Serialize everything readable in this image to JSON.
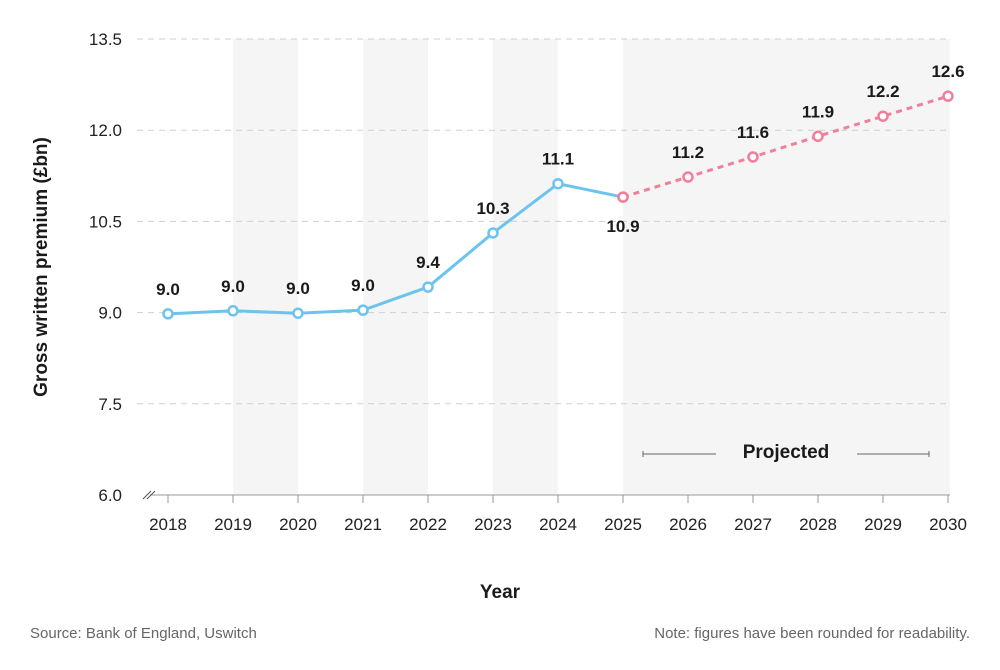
{
  "chart_data": {
    "type": "line",
    "xlabel": "Year",
    "ylabel": "Gross written premium (£bn)",
    "ylim": [
      6.0,
      13.5
    ],
    "yticks": [
      "6.0",
      "7.5",
      "9.0",
      "10.5",
      "12.0",
      "13.5"
    ],
    "grid": "horizontal dashed",
    "categories": [
      "2018",
      "2019",
      "2020",
      "2021",
      "2022",
      "2023",
      "2024",
      "2025",
      "2026",
      "2027",
      "2028",
      "2029",
      "2030"
    ],
    "series": [
      {
        "type": "actual",
        "color": "#6cc4ee",
        "style": "solid",
        "x": [
          "2018",
          "2019",
          "2020",
          "2021",
          "2022",
          "2023",
          "2024",
          "2025"
        ],
        "values": [
          8.98,
          9.03,
          8.99,
          9.04,
          9.42,
          10.31,
          11.12,
          10.9
        ],
        "labels": [
          "9.0",
          "9.0",
          "9.0",
          "9.0",
          "9.4",
          "10.3",
          "11.1",
          "10.9"
        ]
      },
      {
        "type": "projected",
        "color": "#f07f9c",
        "style": "dotted",
        "x": [
          "2025",
          "2026",
          "2027",
          "2028",
          "2029",
          "2030"
        ],
        "values": [
          10.9,
          11.23,
          11.56,
          11.9,
          12.23,
          12.56
        ],
        "labels": [
          "",
          "11.2",
          "11.6",
          "11.9",
          "12.2",
          "12.6"
        ]
      }
    ],
    "annotation": "Projected"
  },
  "footer": {
    "source": "Source: Bank of England, Uswitch",
    "note": "Note: figures have been rounded for readability."
  }
}
